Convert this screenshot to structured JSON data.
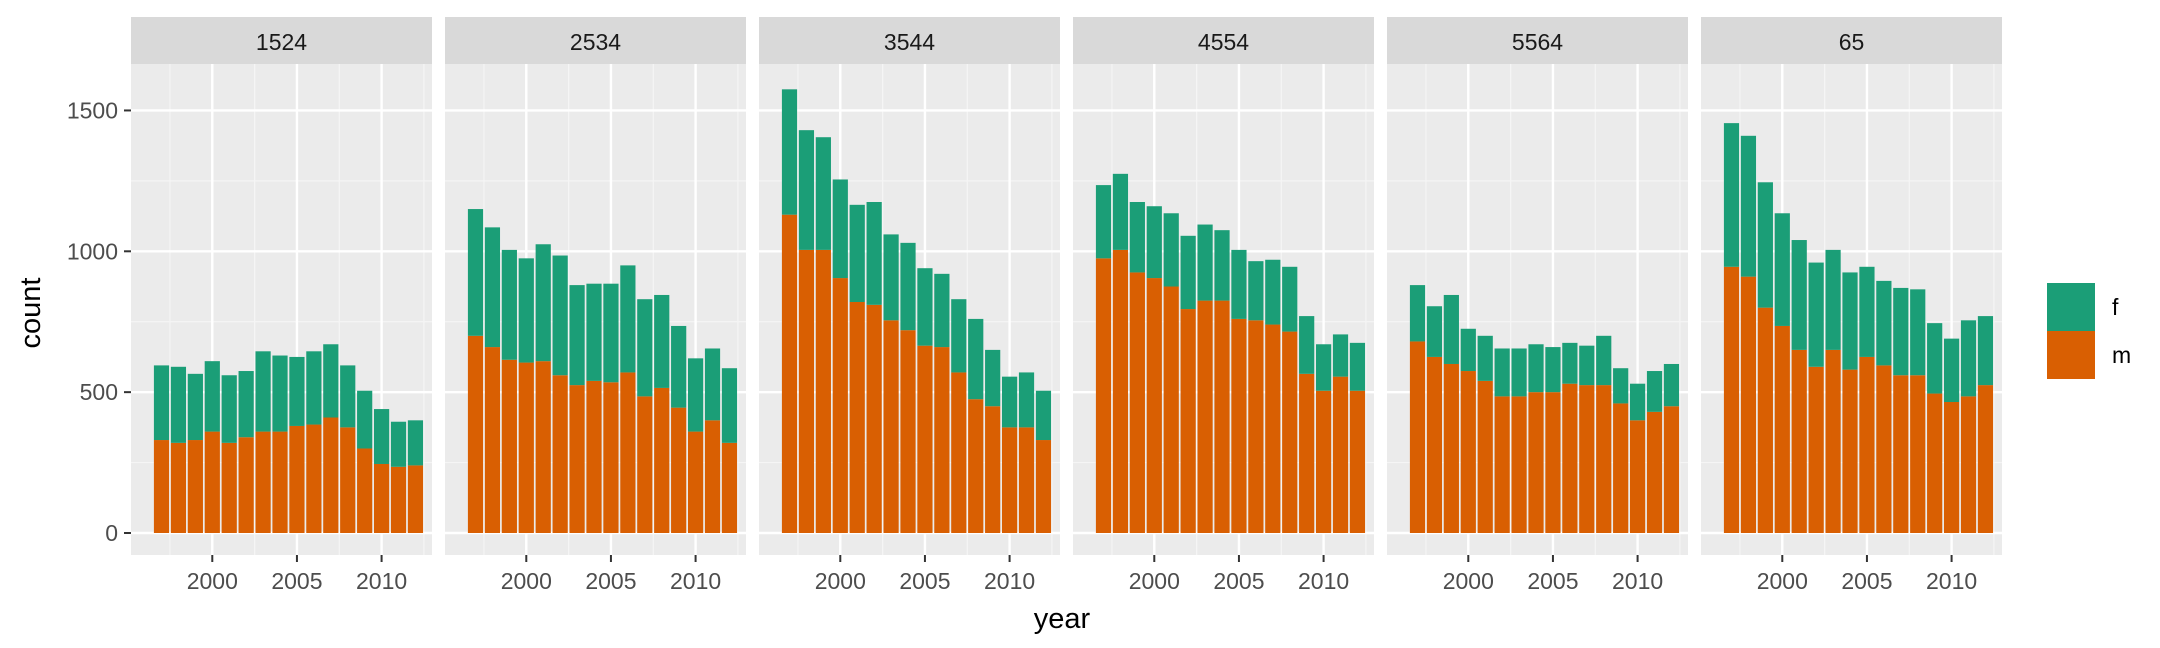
{
  "chart_data": {
    "type": "bar",
    "stacked": true,
    "faceted_by": "age group",
    "xlabel": "year",
    "ylabel": "count",
    "x_ticks": [
      2000,
      2005,
      2010
    ],
    "y_ticks": [
      0,
      500,
      1000,
      1500
    ],
    "ylim": [
      0,
      1650
    ],
    "xlim": [
      1996.3,
      2012.7
    ],
    "years": [
      1997,
      1998,
      1999,
      2000,
      2001,
      2002,
      2003,
      2004,
      2005,
      2006,
      2007,
      2008,
      2009,
      2010,
      2011,
      2012
    ],
    "legend": {
      "position": "right",
      "entries": [
        {
          "key": "f",
          "label": "f",
          "color": "#1B9E77"
        },
        {
          "key": "m",
          "label": "m",
          "color": "#D95F02"
        }
      ]
    },
    "facets": [
      {
        "label": "1524",
        "m": [
          330,
          320,
          330,
          360,
          320,
          340,
          360,
          360,
          380,
          385,
          410,
          375,
          300,
          245,
          235,
          240
        ],
        "total": [
          595,
          590,
          565,
          610,
          560,
          575,
          645,
          630,
          625,
          645,
          670,
          595,
          505,
          440,
          395,
          400
        ]
      },
      {
        "label": "2534",
        "m": [
          700,
          660,
          615,
          605,
          610,
          560,
          525,
          540,
          535,
          570,
          485,
          515,
          445,
          360,
          400,
          320
        ],
        "total": [
          1150,
          1085,
          1005,
          975,
          1025,
          985,
          880,
          885,
          885,
          950,
          830,
          845,
          735,
          620,
          655,
          585
        ]
      },
      {
        "label": "3544",
        "m": [
          1130,
          1005,
          1005,
          905,
          820,
          810,
          755,
          720,
          665,
          660,
          570,
          475,
          450,
          375,
          375,
          330
        ],
        "total": [
          1575,
          1430,
          1405,
          1255,
          1165,
          1175,
          1060,
          1030,
          940,
          920,
          830,
          760,
          650,
          555,
          570,
          505
        ]
      },
      {
        "label": "4554",
        "m": [
          975,
          1005,
          925,
          905,
          875,
          795,
          825,
          825,
          760,
          755,
          740,
          715,
          565,
          505,
          555,
          505
        ],
        "total": [
          1235,
          1275,
          1175,
          1160,
          1135,
          1055,
          1095,
          1075,
          1005,
          965,
          970,
          945,
          770,
          670,
          705,
          675
        ]
      },
      {
        "label": "5564",
        "m": [
          680,
          625,
          600,
          575,
          540,
          485,
          485,
          500,
          500,
          530,
          525,
          525,
          460,
          400,
          430,
          450
        ],
        "total": [
          880,
          805,
          845,
          725,
          700,
          655,
          655,
          670,
          660,
          675,
          665,
          700,
          585,
          530,
          575,
          600
        ]
      },
      {
        "label": "65",
        "m": [
          945,
          910,
          800,
          735,
          650,
          590,
          650,
          580,
          625,
          595,
          560,
          560,
          495,
          465,
          485,
          525
        ],
        "total": [
          1455,
          1410,
          1245,
          1135,
          1040,
          960,
          1005,
          925,
          945,
          895,
          870,
          865,
          745,
          690,
          755,
          770
        ]
      }
    ]
  }
}
